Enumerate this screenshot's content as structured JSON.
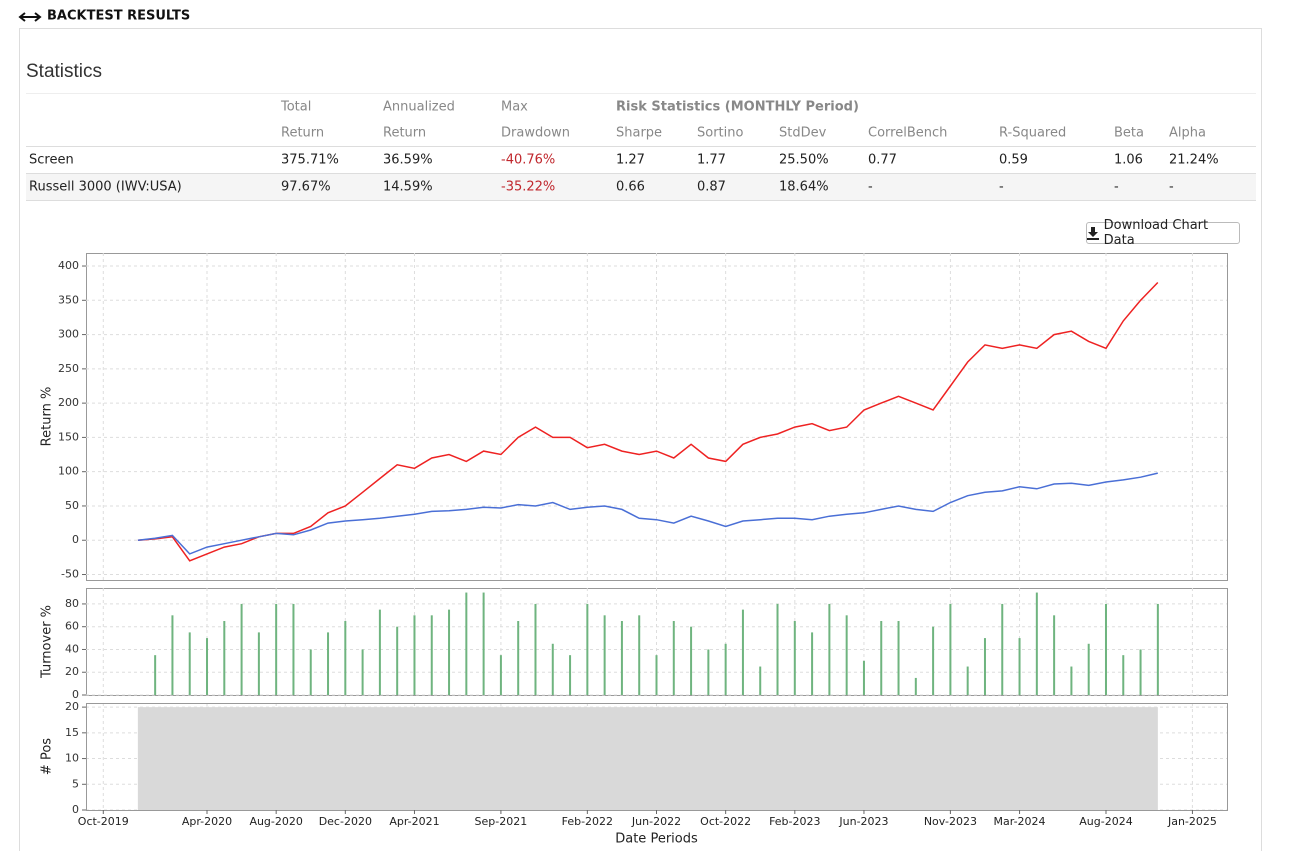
{
  "header": {
    "title": "BACKTEST RESULTS"
  },
  "statistics": {
    "title": "Statistics",
    "group_label": "Risk Statistics (MONTHLY Period)",
    "columns": [
      [
        "Total",
        "Return"
      ],
      [
        "Annualized",
        "Return"
      ],
      [
        "Max",
        "Drawdown"
      ],
      [
        "Sharpe"
      ],
      [
        "Sortino"
      ],
      [
        "StdDev"
      ],
      [
        "CorrelBench"
      ],
      [
        "R-Squared"
      ],
      [
        "Beta"
      ],
      [
        "Alpha"
      ]
    ],
    "rows": [
      [
        "Screen",
        "375.71%",
        "36.59%",
        "-40.76%",
        "1.27",
        "1.77",
        "25.50%",
        "0.77",
        "0.59",
        "1.06",
        "21.24%"
      ],
      [
        "Russell 3000 (IWV:USA)",
        "97.67%",
        "14.59%",
        "-35.22%",
        "0.66",
        "0.87",
        "18.64%",
        "-",
        "-",
        "-",
        "-"
      ]
    ]
  },
  "download_button": "Download Chart Data",
  "chart_data": [
    {
      "type": "line",
      "ylabel": "Return %",
      "xlim": [
        "2019-09",
        "2025-03"
      ],
      "ylim": [
        -58,
        419
      ],
      "yticks": [
        -50,
        0,
        50,
        100,
        150,
        200,
        250,
        300,
        350,
        400
      ],
      "grid": true,
      "x": [
        "2019-12",
        "2020-01",
        "2020-02",
        "2020-03",
        "2020-04",
        "2020-05",
        "2020-06",
        "2020-07",
        "2020-08",
        "2020-09",
        "2020-10",
        "2020-11",
        "2020-12",
        "2021-01",
        "2021-02",
        "2021-03",
        "2021-04",
        "2021-05",
        "2021-06",
        "2021-07",
        "2021-08",
        "2021-09",
        "2021-10",
        "2021-11",
        "2021-12",
        "2022-01",
        "2022-02",
        "2022-03",
        "2022-04",
        "2022-05",
        "2022-06",
        "2022-07",
        "2022-08",
        "2022-09",
        "2022-10",
        "2022-11",
        "2022-12",
        "2023-01",
        "2023-02",
        "2023-03",
        "2023-04",
        "2023-05",
        "2023-06",
        "2023-07",
        "2023-08",
        "2023-09",
        "2023-10",
        "2023-11",
        "2023-12",
        "2024-01",
        "2024-02",
        "2024-03",
        "2024-04",
        "2024-05",
        "2024-06",
        "2024-07",
        "2024-08",
        "2024-09",
        "2024-10",
        "2024-11"
      ],
      "series": [
        {
          "name": "Screen",
          "color": "#ee2222",
          "values": [
            0,
            2,
            5,
            -30,
            -20,
            -10,
            -5,
            5,
            10,
            10,
            20,
            40,
            50,
            70,
            90,
            110,
            105,
            120,
            125,
            115,
            130,
            125,
            150,
            165,
            150,
            150,
            135,
            140,
            130,
            125,
            130,
            120,
            140,
            120,
            115,
            140,
            150,
            155,
            165,
            170,
            160,
            165,
            190,
            200,
            210,
            200,
            190,
            225,
            260,
            285,
            280,
            285,
            280,
            300,
            305,
            290,
            280,
            320,
            350,
            376
          ]
        },
        {
          "name": "Russell 3000 (IWV:USA)",
          "color": "#4a6fd6",
          "values": [
            0,
            3,
            7,
            -20,
            -10,
            -5,
            0,
            5,
            10,
            8,
            15,
            25,
            28,
            30,
            32,
            35,
            38,
            42,
            43,
            45,
            48,
            47,
            52,
            50,
            55,
            45,
            48,
            50,
            45,
            32,
            30,
            25,
            35,
            28,
            20,
            28,
            30,
            32,
            32,
            30,
            35,
            38,
            40,
            45,
            50,
            45,
            42,
            55,
            65,
            70,
            72,
            78,
            75,
            82,
            83,
            80,
            85,
            88,
            92,
            98
          ]
        }
      ]
    },
    {
      "type": "bar",
      "ylabel": "Turnover %",
      "xlim": [
        "2019-09",
        "2025-03"
      ],
      "ylim": [
        0,
        94
      ],
      "yticks": [
        0,
        20,
        40,
        60,
        80
      ],
      "grid": true,
      "color": "#6fb47f",
      "x": [
        "2020-01",
        "2020-02",
        "2020-03",
        "2020-04",
        "2020-05",
        "2020-06",
        "2020-07",
        "2020-08",
        "2020-09",
        "2020-10",
        "2020-11",
        "2020-12",
        "2021-01",
        "2021-02",
        "2021-03",
        "2021-04",
        "2021-05",
        "2021-06",
        "2021-07",
        "2021-08",
        "2021-09",
        "2021-10",
        "2021-11",
        "2021-12",
        "2022-01",
        "2022-02",
        "2022-03",
        "2022-04",
        "2022-05",
        "2022-06",
        "2022-07",
        "2022-08",
        "2022-09",
        "2022-10",
        "2022-11",
        "2022-12",
        "2023-01",
        "2023-02",
        "2023-03",
        "2023-04",
        "2023-05",
        "2023-06",
        "2023-07",
        "2023-08",
        "2023-09",
        "2023-10",
        "2023-11",
        "2023-12",
        "2024-01",
        "2024-02",
        "2024-03",
        "2024-04",
        "2024-05",
        "2024-06",
        "2024-07",
        "2024-08",
        "2024-09",
        "2024-10",
        "2024-11"
      ],
      "values": [
        35,
        70,
        55,
        50,
        65,
        80,
        55,
        80,
        80,
        40,
        55,
        65,
        40,
        75,
        60,
        70,
        70,
        75,
        90,
        90,
        35,
        65,
        80,
        45,
        35,
        80,
        70,
        65,
        70,
        35,
        65,
        60,
        40,
        45,
        75,
        25,
        80,
        65,
        55,
        80,
        70,
        30,
        65,
        65,
        15,
        60,
        80,
        25,
        50,
        80,
        50,
        90,
        70,
        25,
        45,
        80,
        35,
        40,
        80
      ]
    },
    {
      "type": "area",
      "ylabel": "# Pos",
      "xlabel": "Date Periods",
      "xlim": [
        "2019-09",
        "2025-03"
      ],
      "ylim": [
        0,
        20.8
      ],
      "yticks": [
        0,
        5,
        10,
        15,
        20
      ],
      "grid": true,
      "color": "#d9d9d9",
      "x": [
        "2019-12",
        "2024-11"
      ],
      "values": [
        20,
        20
      ],
      "xticks": [
        {
          "value": "2019-10",
          "label": "Oct-2019"
        },
        {
          "value": "2020-04",
          "label": "Apr-2020"
        },
        {
          "value": "2020-08",
          "label": "Aug-2020"
        },
        {
          "value": "2020-12",
          "label": "Dec-2020"
        },
        {
          "value": "2021-04",
          "label": "Apr-2021"
        },
        {
          "value": "2021-09",
          "label": "Sep-2021"
        },
        {
          "value": "2022-02",
          "label": "Feb-2022"
        },
        {
          "value": "2022-06",
          "label": "Jun-2022"
        },
        {
          "value": "2022-10",
          "label": "Oct-2022"
        },
        {
          "value": "2023-02",
          "label": "Feb-2023"
        },
        {
          "value": "2023-06",
          "label": "Jun-2023"
        },
        {
          "value": "2023-11",
          "label": "Nov-2023"
        },
        {
          "value": "2024-03",
          "label": "Mar-2024"
        },
        {
          "value": "2024-08",
          "label": "Aug-2024"
        },
        {
          "value": "2025-01",
          "label": "Jan-2025"
        }
      ]
    }
  ]
}
